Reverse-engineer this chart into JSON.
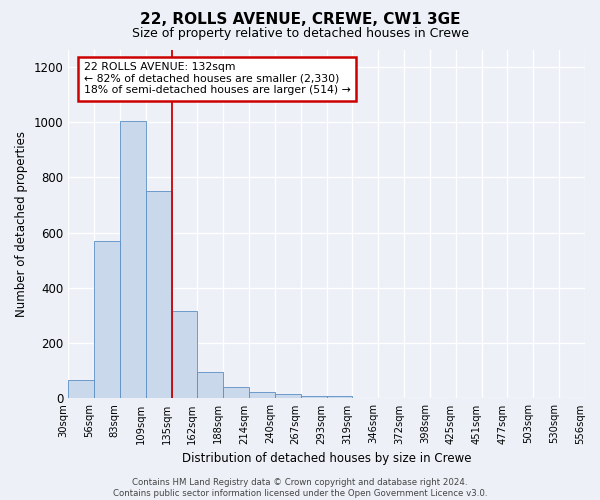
{
  "title1": "22, ROLLS AVENUE, CREWE, CW1 3GE",
  "title2": "Size of property relative to detached houses in Crewe",
  "xlabel": "Distribution of detached houses by size in Crewe",
  "ylabel": "Number of detached properties",
  "bar_values": [
    65,
    570,
    1005,
    750,
    315,
    95,
    40,
    22,
    15,
    10,
    10,
    0,
    0,
    0,
    0,
    0,
    0,
    0,
    0,
    0
  ],
  "bin_labels": [
    "30sqm",
    "56sqm",
    "83sqm",
    "109sqm",
    "135sqm",
    "162sqm",
    "188sqm",
    "214sqm",
    "240sqm",
    "267sqm",
    "293sqm",
    "319sqm",
    "346sqm",
    "372sqm",
    "398sqm",
    "425sqm",
    "451sqm",
    "477sqm",
    "503sqm",
    "530sqm",
    "556sqm"
  ],
  "bar_color": "#c9d9eb",
  "bar_edge_color": "#5b8ec4",
  "bg_color": "#edf1f7",
  "grid_color": "#ffffff",
  "vline_x": 4.0,
  "vline_color": "#cc0000",
  "annotation_text": "22 ROLLS AVENUE: 132sqm\n← 82% of detached houses are smaller (2,330)\n18% of semi-detached houses are larger (514) →",
  "annotation_box_color": "#ffffff",
  "annotation_box_edge": "#cc0000",
  "footer": "Contains HM Land Registry data © Crown copyright and database right 2024.\nContains public sector information licensed under the Open Government Licence v3.0.",
  "ylim": [
    0,
    1260
  ],
  "yticks": [
    0,
    200,
    400,
    600,
    800,
    1000,
    1200
  ]
}
